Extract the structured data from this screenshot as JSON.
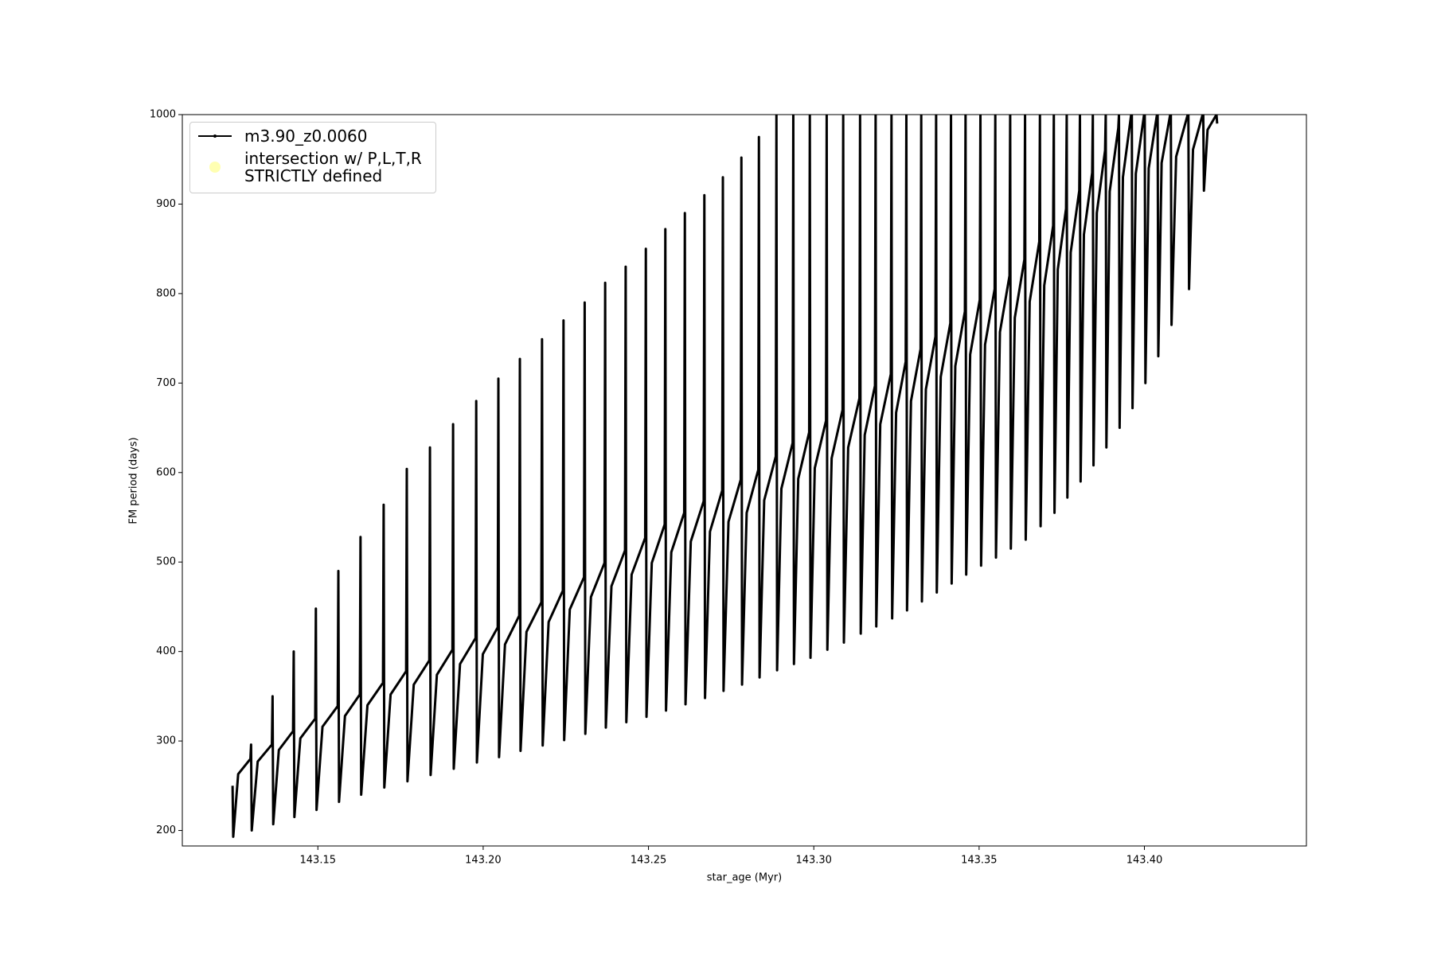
{
  "chart_data": {
    "type": "line",
    "xlabel": "star_age (Myr)",
    "ylabel": "FM period (days)",
    "xlim": [
      143.109,
      143.449
    ],
    "ylim": [
      182.7,
      1000
    ],
    "xticks": [
      143.15,
      {
        "value": 143.2,
        "label": "143.20"
      },
      143.25,
      {
        "value": 143.3,
        "label": "143.30"
      },
      143.35,
      {
        "value": 143.4,
        "label": "143.40"
      }
    ],
    "yticks": [
      200,
      300,
      400,
      500,
      600,
      700,
      800,
      900,
      1000
    ],
    "grid": false,
    "legend": "upper left",
    "series": [
      {
        "name": "m3.90_z0.0060",
        "color": "#000000",
        "x": [
          143.1242,
          143.1244,
          143.1259,
          143.1296,
          143.1298,
          143.13,
          143.1318,
          143.1361,
          143.1363,
          143.1365,
          143.1382,
          143.1425,
          143.1427,
          143.1429,
          143.1447,
          143.1492,
          143.1494,
          143.1496,
          143.1514,
          143.156,
          143.1562,
          143.1564,
          143.1582,
          143.1627,
          143.1629,
          143.1631,
          143.165,
          143.1697,
          143.1699,
          143.1701,
          143.172,
          143.1767,
          143.1769,
          143.1771,
          143.179,
          143.1837,
          143.1839,
          143.1841,
          143.186,
          143.1907,
          143.1909,
          143.1911,
          143.193,
          143.1977,
          143.1979,
          143.1981,
          143.1999,
          143.2044,
          143.2046,
          143.2048,
          143.2066,
          143.2109,
          143.2111,
          143.2113,
          143.2131,
          143.2176,
          143.2178,
          143.218,
          143.2198,
          143.2241,
          143.2243,
          143.2245,
          143.2262,
          143.2305,
          143.2307,
          143.2309,
          143.2326,
          143.2367,
          143.2369,
          143.2371,
          143.2388,
          143.2429,
          143.2431,
          143.2433,
          143.2449,
          143.249,
          143.2492,
          143.2494,
          143.251,
          143.2549,
          143.2551,
          143.2553,
          143.2569,
          143.2608,
          143.261,
          143.2612,
          143.2628,
          143.2667,
          143.2669,
          143.2671,
          143.2686,
          143.2723,
          143.2725,
          143.2727,
          143.2742,
          143.2779,
          143.2781,
          143.2783,
          143.2797,
          143.2832,
          143.2834,
          143.2836,
          143.285,
          143.2885,
          143.2887,
          143.2889,
          143.2902,
          143.2936,
          143.2938,
          143.294,
          143.2953,
          143.2986,
          143.2988,
          143.299,
          143.3003,
          143.3037,
          143.3039,
          143.3041,
          143.3054,
          143.3087,
          143.3089,
          143.3091,
          143.3104,
          143.3138,
          143.314,
          143.3142,
          143.3154,
          143.3185,
          143.3187,
          143.3189,
          143.3201,
          143.3233,
          143.3235,
          143.3237,
          143.3249,
          143.3278,
          143.328,
          143.3282,
          143.3294,
          143.3323,
          143.3325,
          143.3327,
          143.3339,
          143.3368,
          143.337,
          143.3372,
          143.3384,
          143.3413,
          143.3415,
          143.3417,
          143.3428,
          143.3457,
          143.3459,
          143.3461,
          143.3473,
          143.3502,
          143.3504,
          143.3506,
          143.3518,
          143.3547,
          143.3549,
          143.3551,
          143.3563,
          143.3592,
          143.3594,
          143.3596,
          143.3608,
          143.3637,
          143.3639,
          143.3641,
          143.3653,
          143.3682,
          143.3684,
          143.3686,
          143.3697,
          143.3724,
          143.3726,
          143.3728,
          143.3738,
          143.3763,
          143.3765,
          143.3767,
          143.3777,
          143.3803,
          143.3805,
          143.3807,
          143.3817,
          143.3842,
          143.3844,
          143.3846,
          143.3856,
          143.3881,
          143.3883,
          143.3885,
          143.3895,
          143.3921,
          143.3923,
          143.3925,
          143.3935,
          143.396,
          143.3962,
          143.3964,
          143.3974,
          143.3999,
          143.4001,
          143.4003,
          143.4013,
          143.4038,
          143.404,
          143.4042,
          143.4052,
          143.4078,
          143.408,
          143.4082,
          143.4096,
          143.4131,
          143.4133,
          143.4135,
          143.4147,
          143.4176,
          143.4178,
          143.418,
          143.4191,
          143.4218,
          143.422
        ],
        "values": [
          250,
          193,
          263,
          280,
          296,
          200,
          277,
          296,
          350,
          207,
          290,
          311,
          400,
          215,
          303,
          325,
          448,
          223,
          316,
          339,
          490,
          232,
          328,
          352,
          528,
          240,
          340,
          365,
          564,
          248,
          352,
          378,
          604,
          255,
          363,
          390,
          628,
          262,
          374,
          402,
          654,
          269,
          386,
          415,
          680,
          276,
          397,
          427,
          705,
          282,
          408,
          440,
          727,
          289,
          422,
          455,
          749,
          295,
          433,
          468,
          770,
          301,
          447,
          483,
          790,
          308,
          461,
          499,
          812,
          315,
          473,
          513,
          830,
          321,
          486,
          527,
          850,
          327,
          499,
          542,
          872,
          334,
          511,
          555,
          890,
          341,
          523,
          568,
          910,
          348,
          534,
          580,
          930,
          356,
          545,
          592,
          952,
          363,
          555,
          603,
          975,
          371,
          569,
          618,
          1000,
          379,
          582,
          633,
          1000,
          386,
          593,
          645,
          1000,
          393,
          605,
          658,
          1000,
          402,
          616,
          670,
          1000,
          410,
          628,
          683,
          1000,
          420,
          642,
          697,
          1000,
          428,
          654,
          710,
          1000,
          437,
          667,
          724,
          1000,
          446,
          680,
          738,
          1000,
          456,
          693,
          752,
          1000,
          466,
          707,
          767,
          1000,
          476,
          719,
          780,
          1000,
          486,
          732,
          793,
          1000,
          496,
          743,
          805,
          1000,
          505,
          757,
          820,
          1000,
          515,
          773,
          838,
          1000,
          525,
          791,
          858,
          1000,
          540,
          809,
          876,
          1000,
          555,
          827,
          895,
          1000,
          572,
          846,
          915,
          1000,
          590,
          866,
          935,
          1000,
          608,
          890,
          960,
          1000,
          628,
          914,
          985,
          1000,
          650,
          930,
          1000,
          1000,
          672,
          934,
          1000,
          1000,
          700,
          940,
          1000,
          1000,
          730,
          946,
          1000,
          1000,
          765,
          953,
          1000,
          1000,
          805,
          961,
          1000,
          1000,
          915,
          983,
          1000,
          990
        ]
      },
      {
        "name": "intersection w/ P,L,T,R\nSTRICTLY defined",
        "color": "#ffffb2",
        "x": [],
        "values": []
      }
    ]
  }
}
